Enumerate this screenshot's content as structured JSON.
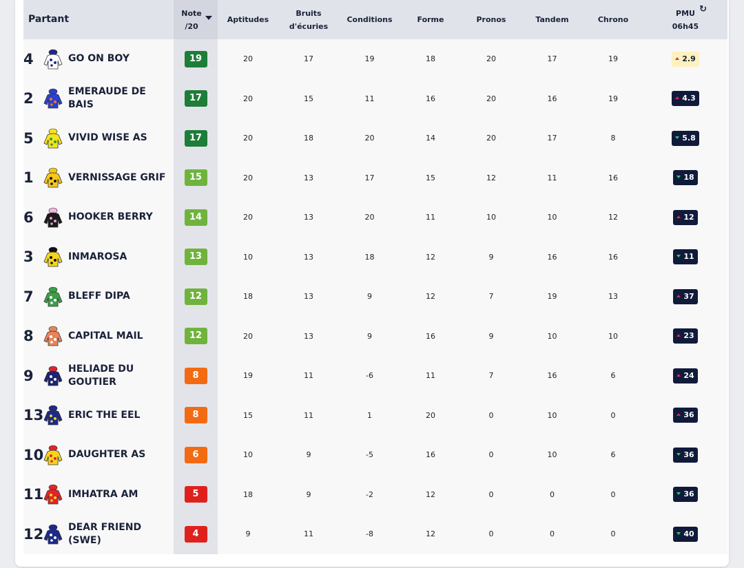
{
  "header": {
    "partant": "Partant",
    "note_line1": "Note",
    "note_line2": "/20",
    "aptitudes": "Aptitudes",
    "bruits_line1": "Bruits",
    "bruits_line2": "d'écuries",
    "conditions": "Conditions",
    "forme": "Forme",
    "pronos": "Pronos",
    "tandem": "Tandem",
    "chrono": "Chrono",
    "pmu_line1": "PMU",
    "pmu_line2": "06h45"
  },
  "colors": {
    "note_green_dark": "#1e7d38",
    "note_green_light": "#6fb33d",
    "note_orange": "#f26b12",
    "note_red": "#e0201c",
    "odds_navy": "#101a3a",
    "odds_fav": "#fdf2bf",
    "arrow_up": "#e0245e",
    "arrow_down": "#2ecc71"
  },
  "rows": [
    {
      "num": "4",
      "name": "GO ON BOY",
      "silk": "white-blue-stars",
      "note": "19",
      "note_color": "green-dark",
      "aptitudes": "20",
      "bruits": "17",
      "conditions": "19",
      "forme": "18",
      "pronos": "20",
      "tandem": "17",
      "chrono": "19",
      "pmu": "2.9",
      "trend": "up",
      "fav": true
    },
    {
      "num": "2",
      "name": "EMERAUDE DE BAIS",
      "silk": "blue-orange",
      "note": "17",
      "note_color": "green-dark",
      "aptitudes": "20",
      "bruits": "15",
      "conditions": "11",
      "forme": "16",
      "pronos": "20",
      "tandem": "16",
      "chrono": "19",
      "pmu": "4.3",
      "trend": "up",
      "fav": false
    },
    {
      "num": "5",
      "name": "VIVID WISE AS",
      "silk": "yellow-green",
      "note": "17",
      "note_color": "green-dark",
      "aptitudes": "20",
      "bruits": "18",
      "conditions": "20",
      "forme": "14",
      "pronos": "20",
      "tandem": "17",
      "chrono": "8",
      "pmu": "5.8",
      "trend": "down",
      "fav": false
    },
    {
      "num": "1",
      "name": "VERNISSAGE GRIF",
      "silk": "yellow-black",
      "note": "15",
      "note_color": "green-light",
      "aptitudes": "20",
      "bruits": "13",
      "conditions": "17",
      "forme": "15",
      "pronos": "12",
      "tandem": "11",
      "chrono": "16",
      "pmu": "18",
      "trend": "down",
      "fav": false
    },
    {
      "num": "6",
      "name": "HOOKER BERRY",
      "silk": "black-pink-dots",
      "note": "14",
      "note_color": "green-light",
      "aptitudes": "20",
      "bruits": "13",
      "conditions": "20",
      "forme": "11",
      "pronos": "10",
      "tandem": "10",
      "chrono": "12",
      "pmu": "12",
      "trend": "up",
      "fav": false
    },
    {
      "num": "3",
      "name": "INMAROSA",
      "silk": "yellow-black-cross",
      "note": "13",
      "note_color": "green-light",
      "aptitudes": "10",
      "bruits": "13",
      "conditions": "18",
      "forme": "12",
      "pronos": "9",
      "tandem": "16",
      "chrono": "16",
      "pmu": "11",
      "trend": "down",
      "fav": false
    },
    {
      "num": "7",
      "name": "BLEFF DIPA",
      "silk": "green-white-stripes",
      "note": "12",
      "note_color": "green-light",
      "aptitudes": "18",
      "bruits": "13",
      "conditions": "9",
      "forme": "12",
      "pronos": "7",
      "tandem": "19",
      "chrono": "13",
      "pmu": "37",
      "trend": "up",
      "fav": false
    },
    {
      "num": "8",
      "name": "CAPITAL MAIL",
      "silk": "orange-white-hoops",
      "note": "12",
      "note_color": "green-light",
      "aptitudes": "20",
      "bruits": "13",
      "conditions": "9",
      "forme": "16",
      "pronos": "9",
      "tandem": "10",
      "chrono": "10",
      "pmu": "23",
      "trend": "up",
      "fav": false
    },
    {
      "num": "9",
      "name": "HELIADE DU GOUTIER",
      "silk": "navy-white-star",
      "note": "8",
      "note_color": "orange",
      "aptitudes": "19",
      "bruits": "11",
      "conditions": "-6",
      "forme": "11",
      "pronos": "7",
      "tandem": "16",
      "chrono": "6",
      "pmu": "24",
      "trend": "up",
      "fav": false
    },
    {
      "num": "13",
      "name": "ERIC THE EEL",
      "silk": "navy-yellow",
      "note": "8",
      "note_color": "orange",
      "aptitudes": "15",
      "bruits": "11",
      "conditions": "1",
      "forme": "20",
      "pronos": "0",
      "tandem": "10",
      "chrono": "0",
      "pmu": "36",
      "trend": "up",
      "fav": false
    },
    {
      "num": "10",
      "name": "DAUGHTER AS",
      "silk": "yellow-red",
      "note": "6",
      "note_color": "orange",
      "aptitudes": "10",
      "bruits": "9",
      "conditions": "-5",
      "forme": "16",
      "pronos": "0",
      "tandem": "10",
      "chrono": "6",
      "pmu": "36",
      "trend": "down",
      "fav": false
    },
    {
      "num": "11",
      "name": "IMHATRA AM",
      "silk": "red-yellow",
      "note": "5",
      "note_color": "red",
      "aptitudes": "18",
      "bruits": "9",
      "conditions": "-2",
      "forme": "12",
      "pronos": "0",
      "tandem": "0",
      "chrono": "0",
      "pmu": "36",
      "trend": "down",
      "fav": false
    },
    {
      "num": "12",
      "name": "DEAR FRIEND (SWE)",
      "silk": "navy-white",
      "note": "4",
      "note_color": "red",
      "aptitudes": "9",
      "bruits": "11",
      "conditions": "-8",
      "forme": "12",
      "pronos": "0",
      "tandem": "0",
      "chrono": "0",
      "pmu": "40",
      "trend": "down",
      "fav": false
    }
  ]
}
